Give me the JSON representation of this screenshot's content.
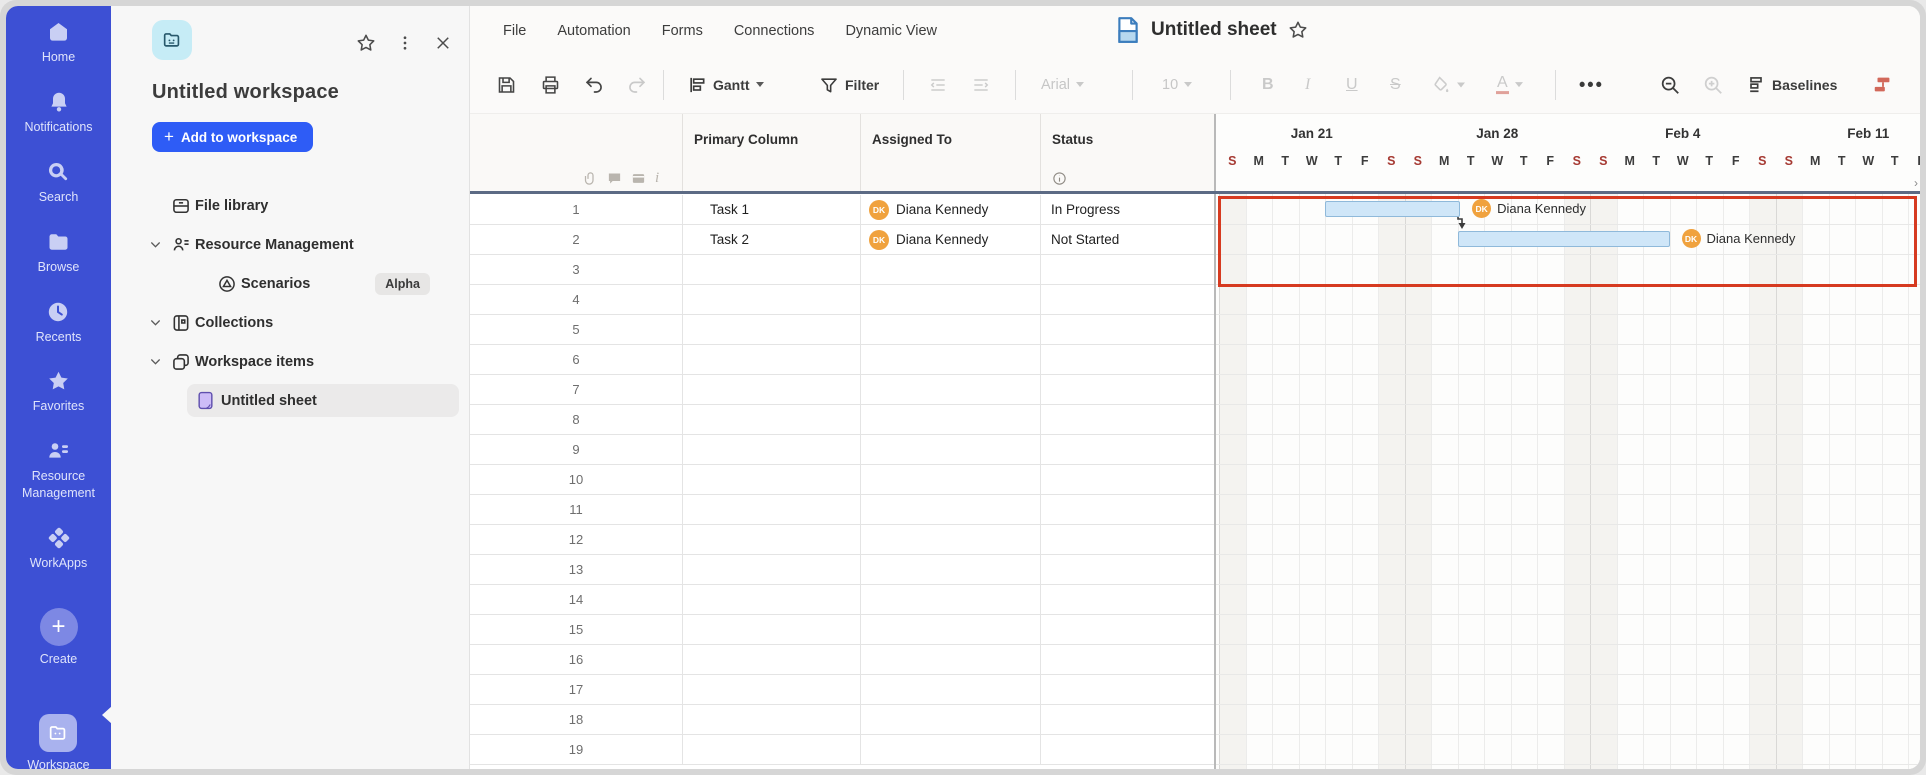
{
  "rail": {
    "items": [
      {
        "label": "Home",
        "icon": "home-icon"
      },
      {
        "label": "Notifications",
        "icon": "bell-icon"
      },
      {
        "label": "Search",
        "icon": "search-icon"
      },
      {
        "label": "Browse",
        "icon": "folder-icon"
      },
      {
        "label": "Recents",
        "icon": "clock-icon"
      },
      {
        "label": "Favorites",
        "icon": "star-icon"
      },
      {
        "label": "Resource Management",
        "icon": "people-icon"
      },
      {
        "label": "WorkApps",
        "icon": "workapps-icon"
      }
    ],
    "create_label": "Create",
    "workspace_label": "Workspace"
  },
  "panel": {
    "title": "Untitled workspace",
    "add_button_label": "Add to workspace",
    "tree": [
      {
        "label": "File library",
        "icon": "file-library-icon",
        "level": "root",
        "chevron": false
      },
      {
        "label": "Resource Management",
        "icon": "resource-mgmt-icon",
        "level": "root",
        "chevron": true
      },
      {
        "label": "Scenarios",
        "icon": "scenarios-icon",
        "level": "child",
        "chevron": false,
        "badge": "Alpha"
      },
      {
        "label": "Collections",
        "icon": "collections-icon",
        "level": "root",
        "chevron": true
      },
      {
        "label": "Workspace items",
        "icon": "workspace-items-icon",
        "level": "root",
        "chevron": true
      },
      {
        "label": "Untitled sheet",
        "icon": "sheet-doc-icon",
        "level": "leaf",
        "chevron": false,
        "selected": true
      }
    ]
  },
  "menubar": {
    "items": [
      "File",
      "Automation",
      "Forms",
      "Connections",
      "Dynamic View"
    ]
  },
  "titlebar": {
    "title": "Untitled sheet"
  },
  "toolbar": {
    "gantt_label": "Gantt",
    "filter_label": "Filter",
    "font_name": "Arial",
    "font_size": "10",
    "bold": "B",
    "italic": "I",
    "underline": "U",
    "strikethrough": "S",
    "more_label": "•••",
    "baselines_label": "Baselines"
  },
  "grid": {
    "columns": [
      "Primary Column",
      "Assigned To",
      "Status"
    ],
    "total_rows": 19,
    "rows": [
      {
        "num": 1,
        "task": "Task 1",
        "assignee": "Diana Kennedy",
        "initials": "DK",
        "status": "In Progress"
      },
      {
        "num": 2,
        "task": "Task 2",
        "assignee": "Diana Kennedy",
        "initials": "DK",
        "status": "Not Started"
      }
    ]
  },
  "gantt": {
    "week_labels": [
      "Jan 21",
      "Jan 28",
      "Feb 4",
      "Feb 11"
    ],
    "day_letters": [
      "S",
      "M",
      "T",
      "W",
      "T",
      "F",
      "S"
    ],
    "visible_days": 27,
    "bars": [
      {
        "row": 1,
        "start_day": 4.0,
        "end_day": 9.1,
        "assignee": "Diana Kennedy",
        "initials": "DK"
      },
      {
        "row": 2,
        "start_day": 9.0,
        "end_day": 17.0,
        "assignee": "Diana Kennedy",
        "initials": "DK"
      }
    ],
    "dependency": {
      "from_row": 1,
      "to_row": 2
    }
  },
  "colors": {
    "rail_blue": "#3d50d4",
    "accent_blue": "#2e5cf6",
    "highlight_red": "#d63a20",
    "bar_fill": "#cfe6f8",
    "bar_border": "#8fb9da",
    "avatar_orange": "#f0a23e",
    "weekend_text": "#a63a33",
    "freeze_line": "#5c6a84"
  }
}
